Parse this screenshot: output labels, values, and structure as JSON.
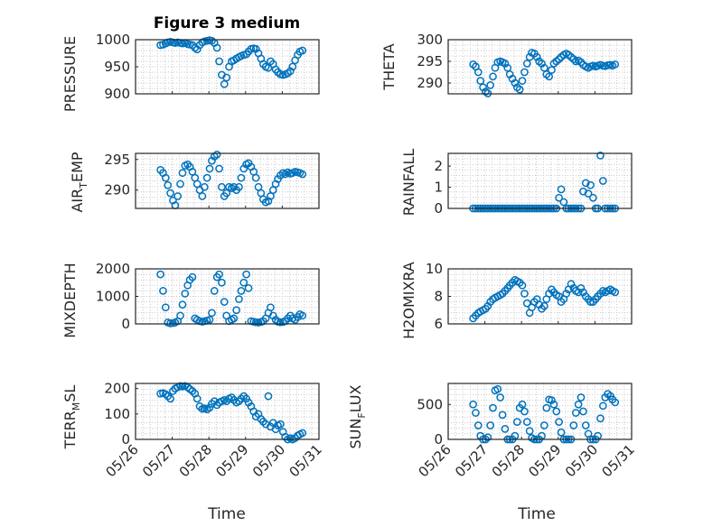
{
  "figure": {
    "title": "Figure 3 medium",
    "marker_color": "#0072BD",
    "x_tick_labels": [
      "05/26",
      "05/27",
      "05/28",
      "05/29",
      "05/30",
      "05/31"
    ],
    "xlabel": "Time"
  },
  "chart_data": [
    {
      "type": "scatter",
      "panel": "PRESSURE",
      "ylabel": "PRESSURE",
      "xlim": [
        0,
        5
      ],
      "ylim": [
        900,
        1000
      ],
      "yticks": [
        900,
        950,
        1000
      ],
      "ytick_labels": [
        "900",
        "950",
        "1000"
      ],
      "grid": true,
      "x": [
        0.68,
        0.75,
        0.82,
        0.88,
        0.95,
        1.02,
        1.08,
        1.15,
        1.22,
        1.28,
        1.35,
        1.42,
        1.48,
        1.55,
        1.62,
        1.68,
        1.75,
        1.82,
        1.88,
        1.95,
        2.02,
        2.08,
        2.15,
        2.22,
        2.28,
        2.35,
        2.42,
        2.48,
        2.55,
        2.62,
        2.68,
        2.75,
        2.82,
        2.88,
        2.95,
        3.02,
        3.08,
        3.15,
        3.22,
        3.28,
        3.35,
        3.42,
        3.48,
        3.55,
        3.62,
        3.68,
        3.75,
        3.82,
        3.88,
        3.95,
        4.02,
        4.08,
        4.15,
        4.22,
        4.28,
        4.35,
        4.42,
        4.48,
        4.55
      ],
      "y": [
        990,
        991,
        993,
        995,
        996,
        995,
        994,
        995,
        994,
        993,
        994,
        992,
        991,
        990,
        985,
        982,
        990,
        995,
        997,
        998,
        999,
        998,
        994,
        985,
        960,
        935,
        918,
        930,
        950,
        960,
        962,
        965,
        968,
        970,
        972,
        973,
        978,
        983,
        984,
        983,
        975,
        965,
        955,
        950,
        948,
        960,
        955,
        945,
        940,
        936,
        935,
        936,
        938,
        942,
        950,
        962,
        972,
        978,
        980
      ]
    },
    {
      "type": "scatter",
      "panel": "THETA",
      "ylabel": "THETA",
      "xlim": [
        0,
        5
      ],
      "ylim": [
        287.5,
        300
      ],
      "yticks": [
        290,
        295,
        300
      ],
      "ytick_labels": [
        "290",
        "295",
        "300"
      ],
      "grid": true,
      "x": [
        0.68,
        0.75,
        0.82,
        0.88,
        0.95,
        1.02,
        1.08,
        1.15,
        1.22,
        1.28,
        1.35,
        1.42,
        1.48,
        1.55,
        1.62,
        1.68,
        1.75,
        1.82,
        1.88,
        1.95,
        2.02,
        2.08,
        2.15,
        2.22,
        2.28,
        2.35,
        2.42,
        2.48,
        2.55,
        2.62,
        2.68,
        2.75,
        2.82,
        2.88,
        2.95,
        3.02,
        3.08,
        3.15,
        3.22,
        3.28,
        3.35,
        3.42,
        3.48,
        3.55,
        3.62,
        3.68,
        3.75,
        3.82,
        3.88,
        3.95,
        4.02,
        4.08,
        4.15,
        4.22,
        4.28,
        4.35,
        4.42,
        4.48,
        4.55
      ],
      "y": [
        294.3,
        293.8,
        292.5,
        290.5,
        289.0,
        288.0,
        287.6,
        289.5,
        291.5,
        293.5,
        294.8,
        295.0,
        294.8,
        294.5,
        293.5,
        292.0,
        291.0,
        290.0,
        289.0,
        288.5,
        290.5,
        292.5,
        294.5,
        296.0,
        297.0,
        296.8,
        296.0,
        295.0,
        294.5,
        293.5,
        292.0,
        291.5,
        293.0,
        294.5,
        295.0,
        295.5,
        296.0,
        296.5,
        296.8,
        296.5,
        296.0,
        295.5,
        295.0,
        295.2,
        294.8,
        294.2,
        293.8,
        293.5,
        293.8,
        294.0,
        293.8,
        294.0,
        294.2,
        294.0,
        293.9,
        294.1,
        294.2,
        294.0,
        294.3
      ]
    },
    {
      "type": "scatter",
      "panel": "AIR_TEMP",
      "ylabel": "AIR_TEMP",
      "xlim": [
        0,
        5
      ],
      "ylim": [
        287,
        296
      ],
      "yticks": [
        290,
        295
      ],
      "ytick_labels": [
        "290",
        "295"
      ],
      "grid": true,
      "x": [
        0.68,
        0.75,
        0.82,
        0.88,
        0.95,
        1.02,
        1.08,
        1.15,
        1.22,
        1.28,
        1.35,
        1.42,
        1.48,
        1.55,
        1.62,
        1.68,
        1.75,
        1.82,
        1.88,
        1.95,
        2.02,
        2.08,
        2.15,
        2.22,
        2.28,
        2.35,
        2.42,
        2.48,
        2.55,
        2.62,
        2.68,
        2.75,
        2.82,
        2.88,
        2.95,
        3.02,
        3.08,
        3.15,
        3.22,
        3.28,
        3.35,
        3.42,
        3.48,
        3.55,
        3.62,
        3.68,
        3.75,
        3.82,
        3.88,
        3.95,
        4.02,
        4.08,
        4.15,
        4.22,
        4.28,
        4.35,
        4.42,
        4.48,
        4.55
      ],
      "y": [
        293.3,
        292.8,
        292.0,
        290.8,
        289.5,
        288.3,
        287.5,
        289.0,
        291.0,
        292.8,
        294.0,
        294.2,
        293.8,
        293.0,
        292.0,
        291.0,
        290.0,
        289.0,
        290.5,
        292.0,
        293.5,
        294.8,
        295.5,
        295.8,
        293.5,
        290.5,
        289.0,
        289.5,
        290.5,
        290.3,
        290.5,
        290.0,
        290.5,
        292.0,
        293.5,
        294.2,
        294.4,
        293.8,
        293.0,
        292.0,
        290.5,
        289.5,
        288.5,
        288.0,
        288.2,
        289.0,
        290.0,
        291.0,
        291.8,
        292.4,
        292.8,
        292.6,
        292.9,
        292.7,
        292.8,
        293.0,
        292.9,
        292.8,
        292.6
      ]
    },
    {
      "type": "scatter",
      "panel": "RAINFALL",
      "ylabel": "RAINFALL",
      "xlim": [
        0,
        5
      ],
      "ylim": [
        0,
        2.6
      ],
      "yticks": [
        0,
        1,
        2
      ],
      "ytick_labels": [
        "0",
        "1",
        "2"
      ],
      "grid": true,
      "x": [
        0.68,
        0.75,
        0.82,
        0.88,
        0.95,
        1.02,
        1.08,
        1.15,
        1.22,
        1.28,
        1.35,
        1.42,
        1.48,
        1.55,
        1.62,
        1.68,
        1.75,
        1.82,
        1.88,
        1.95,
        2.02,
        2.08,
        2.15,
        2.22,
        2.28,
        2.35,
        2.42,
        2.48,
        2.55,
        2.62,
        2.68,
        2.75,
        2.82,
        2.88,
        2.95,
        3.02,
        3.08,
        3.15,
        3.22,
        3.28,
        3.35,
        3.42,
        3.48,
        3.55,
        3.62,
        3.68,
        3.75,
        3.82,
        3.88,
        3.95,
        4.02,
        4.08,
        4.15,
        4.22,
        4.28,
        4.35,
        4.42,
        4.48,
        4.55
      ],
      "y": [
        0,
        0,
        0,
        0,
        0,
        0,
        0,
        0,
        0,
        0,
        0,
        0,
        0,
        0,
        0,
        0,
        0,
        0,
        0,
        0,
        0,
        0,
        0,
        0,
        0,
        0,
        0,
        0,
        0,
        0,
        0,
        0,
        0,
        0,
        0,
        0.5,
        0.9,
        0.3,
        0,
        0,
        0,
        0,
        0,
        0,
        0,
        0.8,
        1.2,
        0.7,
        1.1,
        0.5,
        0,
        0,
        2.5,
        1.3,
        0,
        0,
        0,
        0,
        0
      ]
    },
    {
      "type": "scatter",
      "panel": "MIXDEPTH",
      "ylabel": "MIXDEPTH",
      "xlim": [
        0,
        5
      ],
      "ylim": [
        0,
        2000
      ],
      "yticks": [
        0,
        1000,
        2000
      ],
      "ytick_labels": [
        "0",
        "1000",
        "2000"
      ],
      "grid": true,
      "x": [
        0.68,
        0.75,
        0.82,
        0.88,
        0.95,
        1.02,
        1.08,
        1.15,
        1.22,
        1.28,
        1.35,
        1.42,
        1.48,
        1.55,
        1.62,
        1.68,
        1.75,
        1.82,
        1.88,
        1.95,
        2.02,
        2.08,
        2.15,
        2.22,
        2.28,
        2.35,
        2.42,
        2.48,
        2.55,
        2.62,
        2.68,
        2.75,
        2.82,
        2.88,
        2.95,
        3.02,
        3.08,
        3.15,
        3.22,
        3.28,
        3.35,
        3.42,
        3.48,
        3.55,
        3.62,
        3.68,
        3.75,
        3.82,
        3.88,
        3.95,
        4.02,
        4.08,
        4.15,
        4.22,
        4.28,
        4.35,
        4.42,
        4.48,
        4.55
      ],
      "y": [
        1800,
        1200,
        600,
        50,
        20,
        30,
        50,
        100,
        300,
        700,
        1100,
        1400,
        1600,
        1700,
        200,
        150,
        100,
        80,
        100,
        120,
        150,
        400,
        1200,
        1700,
        1800,
        1500,
        800,
        300,
        100,
        150,
        200,
        500,
        900,
        1200,
        1500,
        1800,
        1300,
        100,
        80,
        60,
        50,
        70,
        100,
        200,
        400,
        600,
        300,
        150,
        80,
        60,
        70,
        100,
        200,
        300,
        200,
        150,
        250,
        350,
        300
      ]
    },
    {
      "type": "scatter",
      "panel": "H2OMIXRA",
      "ylabel": "H2OMIXRA",
      "xlim": [
        0,
        5
      ],
      "ylim": [
        6,
        10
      ],
      "yticks": [
        6,
        8,
        10
      ],
      "ytick_labels": [
        "6",
        "8",
        "10"
      ],
      "grid": true,
      "x": [
        0.68,
        0.75,
        0.82,
        0.88,
        0.95,
        1.02,
        1.08,
        1.15,
        1.22,
        1.28,
        1.35,
        1.42,
        1.48,
        1.55,
        1.62,
        1.68,
        1.75,
        1.82,
        1.88,
        1.95,
        2.02,
        2.08,
        2.15,
        2.22,
        2.28,
        2.35,
        2.42,
        2.48,
        2.55,
        2.62,
        2.68,
        2.75,
        2.82,
        2.88,
        2.95,
        3.02,
        3.08,
        3.15,
        3.22,
        3.28,
        3.35,
        3.42,
        3.48,
        3.55,
        3.62,
        3.68,
        3.75,
        3.82,
        3.88,
        3.95,
        4.02,
        4.08,
        4.15,
        4.22,
        4.28,
        4.35,
        4.42,
        4.48,
        4.55
      ],
      "y": [
        6.4,
        6.6,
        6.8,
        6.9,
        7.0,
        7.1,
        7.3,
        7.6,
        7.8,
        7.9,
        8.0,
        8.1,
        8.2,
        8.4,
        8.6,
        8.8,
        9.0,
        9.2,
        9.1,
        9.0,
        8.8,
        8.2,
        7.5,
        6.8,
        7.2,
        7.6,
        7.8,
        7.4,
        7.1,
        7.3,
        7.8,
        8.2,
        8.5,
        8.3,
        8.1,
        8.0,
        7.6,
        7.8,
        8.2,
        8.5,
        8.9,
        8.6,
        8.4,
        8.3,
        8.6,
        8.3,
        8.0,
        7.8,
        7.6,
        7.6,
        7.8,
        8.0,
        8.2,
        8.4,
        8.3,
        8.4,
        8.5,
        8.4,
        8.3
      ]
    },
    {
      "type": "scatter",
      "panel": "TERR_MSL",
      "ylabel": "TERR_MSL",
      "xlim": [
        0,
        5
      ],
      "ylim": [
        0,
        220
      ],
      "yticks": [
        0,
        100,
        200
      ],
      "ytick_labels": [
        "0",
        "100",
        "200"
      ],
      "grid": true,
      "x": [
        0.68,
        0.75,
        0.82,
        0.88,
        0.95,
        1.02,
        1.08,
        1.15,
        1.22,
        1.28,
        1.35,
        1.42,
        1.48,
        1.55,
        1.62,
        1.68,
        1.75,
        1.82,
        1.88,
        1.95,
        2.02,
        2.08,
        2.15,
        2.22,
        2.28,
        2.35,
        2.42,
        2.48,
        2.55,
        2.62,
        2.68,
        2.75,
        2.82,
        2.88,
        2.95,
        3.02,
        3.08,
        3.15,
        3.22,
        3.28,
        3.35,
        3.42,
        3.48,
        3.55,
        3.62,
        3.68,
        3.75,
        3.82,
        3.88,
        3.95,
        4.02,
        4.08,
        4.15,
        4.22,
        4.28,
        4.35,
        4.42,
        4.48,
        4.55
      ],
      "y": [
        180,
        182,
        178,
        170,
        160,
        190,
        200,
        205,
        210,
        208,
        210,
        205,
        198,
        190,
        180,
        160,
        130,
        120,
        122,
        118,
        125,
        140,
        150,
        135,
        145,
        150,
        155,
        150,
        160,
        165,
        155,
        145,
        150,
        160,
        170,
        160,
        145,
        130,
        110,
        90,
        100,
        80,
        70,
        60,
        170,
        50,
        65,
        40,
        55,
        60,
        30,
        10,
        0,
        5,
        0,
        5,
        15,
        20,
        25
      ]
    },
    {
      "type": "scatter",
      "panel": "SUN_FLUX",
      "ylabel": "SUN_FLUX",
      "xlim": [
        0,
        5
      ],
      "ylim": [
        0,
        800
      ],
      "yticks": [
        0,
        500
      ],
      "ytick_labels": [
        "0",
        "500"
      ],
      "grid": true,
      "x": [
        0.68,
        0.75,
        0.82,
        0.88,
        0.95,
        1.02,
        1.08,
        1.15,
        1.22,
        1.28,
        1.35,
        1.42,
        1.48,
        1.55,
        1.62,
        1.68,
        1.75,
        1.82,
        1.88,
        1.95,
        2.02,
        2.08,
        2.15,
        2.22,
        2.28,
        2.35,
        2.42,
        2.48,
        2.55,
        2.62,
        2.68,
        2.75,
        2.82,
        2.88,
        2.95,
        3.02,
        3.08,
        3.15,
        3.22,
        3.28,
        3.35,
        3.42,
        3.48,
        3.55,
        3.62,
        3.68,
        3.75,
        3.82,
        3.88,
        3.95,
        4.02,
        4.08,
        4.15,
        4.22,
        4.28,
        4.35,
        4.42,
        4.48,
        4.55
      ],
      "y": [
        500,
        380,
        200,
        50,
        0,
        0,
        30,
        200,
        450,
        700,
        720,
        600,
        350,
        150,
        0,
        0,
        0,
        50,
        250,
        450,
        500,
        400,
        250,
        120,
        20,
        0,
        0,
        0,
        50,
        200,
        450,
        570,
        560,
        500,
        400,
        250,
        100,
        0,
        0,
        0,
        0,
        200,
        380,
        500,
        600,
        400,
        200,
        80,
        0,
        0,
        0,
        50,
        300,
        480,
        600,
        650,
        620,
        570,
        530
      ]
    }
  ]
}
